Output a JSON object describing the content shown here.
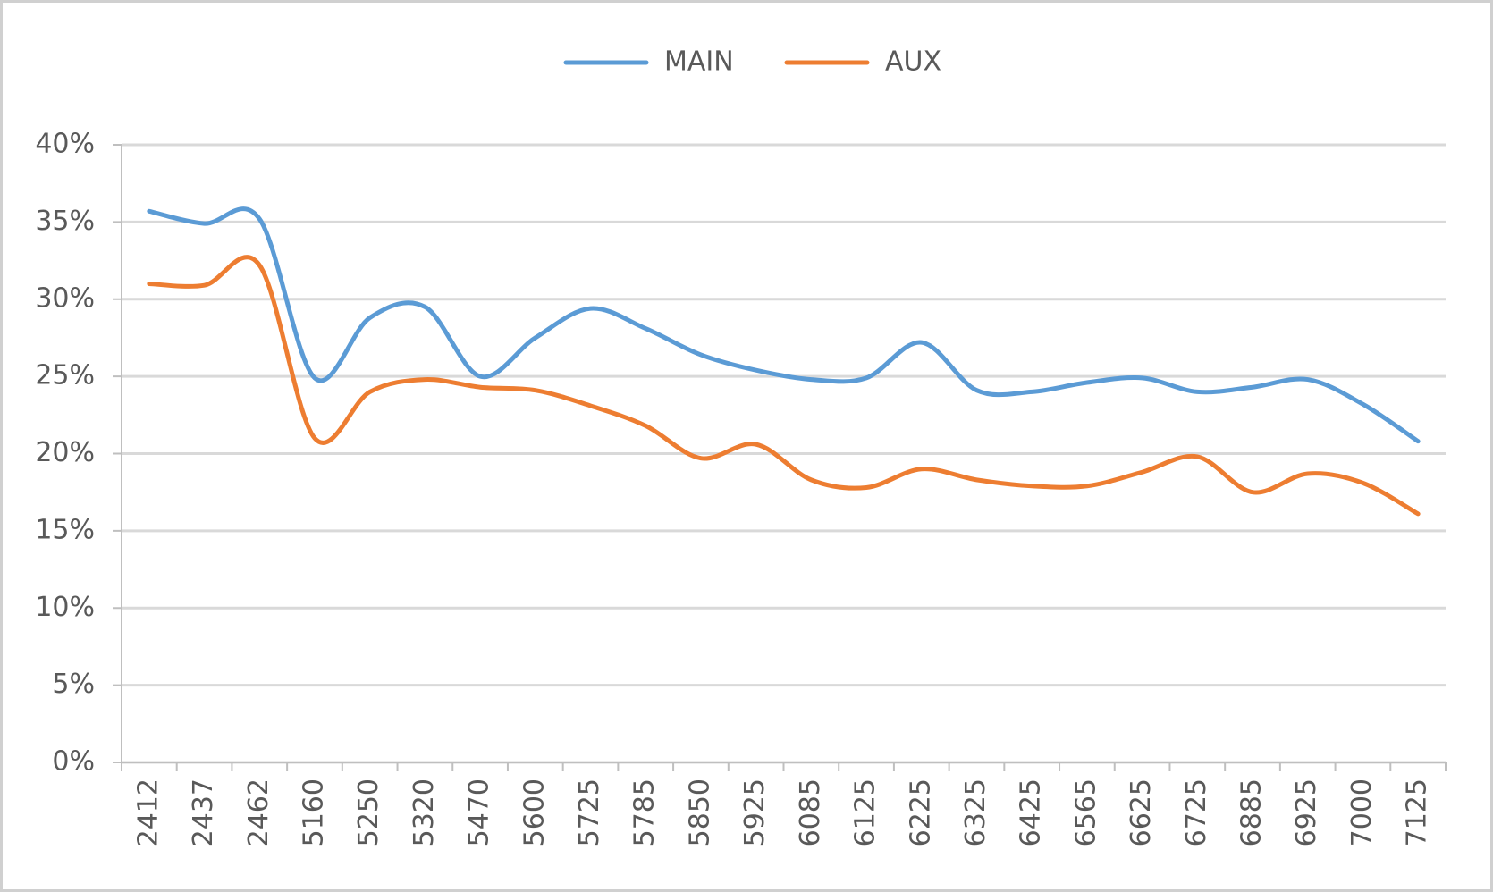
{
  "chart_data": {
    "type": "line",
    "categories": [
      "2412",
      "2437",
      "2462",
      "5160",
      "5250",
      "5320",
      "5470",
      "5600",
      "5725",
      "5785",
      "5850",
      "5925",
      "6085",
      "6125",
      "6225",
      "6325",
      "6425",
      "6565",
      "6625",
      "6725",
      "6885",
      "6925",
      "7000",
      "7125"
    ],
    "series": [
      {
        "name": "MAIN",
        "color": "#5b9bd5",
        "values": [
          35.7,
          34.9,
          35.2,
          24.9,
          28.8,
          29.5,
          25.0,
          27.5,
          29.4,
          28.1,
          26.4,
          25.4,
          24.8,
          24.9,
          27.2,
          24.1,
          24.0,
          24.6,
          24.9,
          24.0,
          24.3,
          24.8,
          23.2,
          20.8
        ]
      },
      {
        "name": "AUX",
        "color": "#ed7d31",
        "values": [
          31.0,
          30.9,
          32.2,
          21.0,
          24.0,
          24.8,
          24.3,
          24.1,
          23.1,
          21.8,
          19.7,
          20.6,
          18.3,
          17.8,
          19.0,
          18.3,
          17.9,
          17.9,
          18.8,
          19.8,
          17.5,
          18.7,
          18.1,
          16.1
        ]
      }
    ],
    "ylim": [
      0,
      40
    ],
    "yticks": [
      {
        "value": 0,
        "label": "0%"
      },
      {
        "value": 5,
        "label": "5%"
      },
      {
        "value": 10,
        "label": "10%"
      },
      {
        "value": 15,
        "label": "15%"
      },
      {
        "value": 20,
        "label": "20%"
      },
      {
        "value": 25,
        "label": "25%"
      },
      {
        "value": 30,
        "label": "30%"
      },
      {
        "value": 35,
        "label": "35%"
      },
      {
        "value": 40,
        "label": "40%"
      }
    ],
    "grid": true,
    "smooth": true,
    "legend": "top"
  }
}
